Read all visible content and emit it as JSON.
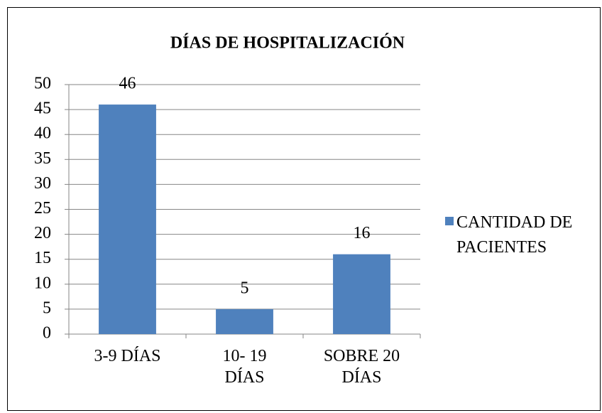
{
  "chart_data": {
    "type": "bar",
    "title": "DÍAS DE HOSPITALIZACIÓN",
    "categories": [
      "3-9 DÍAS",
      "10- 19 DÍAS",
      "SOBRE 20 DÍAS"
    ],
    "series": [
      {
        "name": "CANTIDAD DE PACIENTES",
        "color": "#4f81bd",
        "values": [
          46,
          5,
          16
        ]
      }
    ],
    "ylim": [
      0,
      50
    ],
    "yticks": [
      0,
      5,
      10,
      15,
      20,
      25,
      30,
      35,
      40,
      45,
      50
    ],
    "grid": true,
    "legend": "right",
    "data_labels": true
  }
}
